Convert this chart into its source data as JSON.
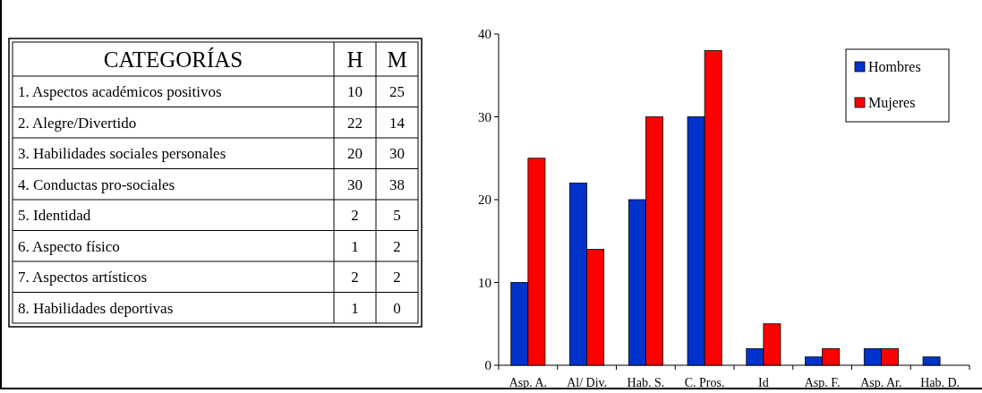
{
  "chart_data": [
    {
      "type": "other",
      "title": "CATEGORÍAS",
      "categories": [
        "1. Aspectos académicos positivos",
        "2. Alegre/Divertido",
        "3. Habilidades sociales personales",
        "4. Conductas pro-sociales",
        "5. Identidad",
        "6. Aspecto físico",
        "7. Aspectos artísticos",
        "8. Habilidades deportivas"
      ],
      "series": [
        {
          "name": "H",
          "values": [
            10,
            22,
            20,
            30,
            2,
            1,
            2,
            1
          ]
        },
        {
          "name": "M",
          "values": [
            25,
            14,
            30,
            38,
            5,
            2,
            2,
            0
          ]
        }
      ],
      "data_labels": true
    },
    {
      "type": "bar",
      "categories": [
        "Asp. A.",
        "Al/ Div.",
        "Hab. S.",
        "C. Pros.",
        "Id",
        "Asp. F.",
        "Asp. Ar.",
        "Hab. D."
      ],
      "series": [
        {
          "name": "Hombres",
          "color": "#0033cc",
          "values": [
            10,
            22,
            20,
            30,
            2,
            1,
            2,
            1
          ]
        },
        {
          "name": "Mujeres",
          "color": "#ff0000",
          "values": [
            25,
            14,
            30,
            38,
            5,
            2,
            2,
            0
          ]
        }
      ],
      "ylim": [
        0,
        40
      ],
      "yticks": [
        0,
        10,
        20,
        30,
        40
      ],
      "legend": "top right"
    }
  ]
}
